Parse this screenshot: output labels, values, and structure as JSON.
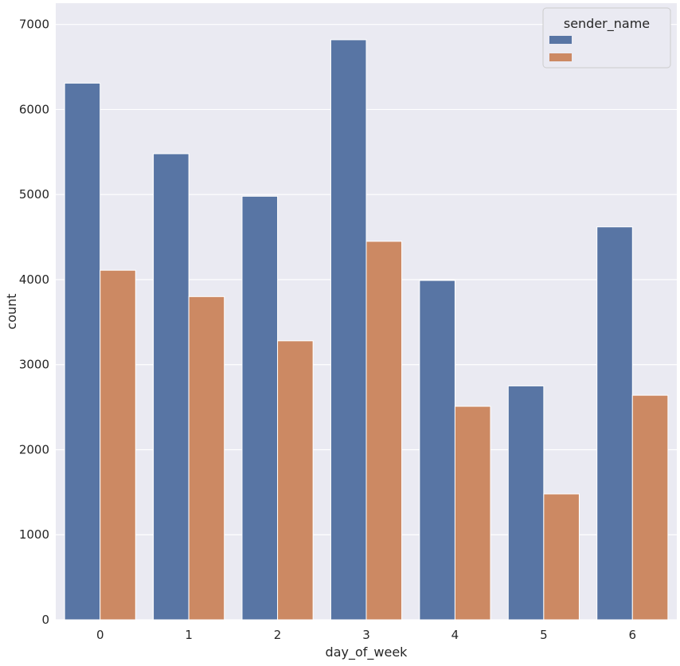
{
  "chart_data": {
    "type": "bar",
    "xlabel": "day_of_week",
    "ylabel": "count",
    "categories": [
      "0",
      "1",
      "2",
      "3",
      "4",
      "5",
      "6"
    ],
    "ylim": [
      0,
      7250
    ],
    "yticks": [
      0,
      1000,
      2000,
      3000,
      4000,
      5000,
      6000,
      7000
    ],
    "ytick_labels": [
      "0",
      "1000",
      "2000",
      "3000",
      "4000",
      "5000",
      "6000",
      "7000"
    ],
    "grid": true,
    "series": [
      {
        "values": [
          6310,
          5480,
          4980,
          6820,
          3990,
          2750,
          4620
        ],
        "color": "#5875a4"
      },
      {
        "values": [
          4110,
          3800,
          3280,
          4450,
          2510,
          1480,
          2640
        ],
        "color": "#cc8963"
      }
    ],
    "legend": {
      "title": "sender_name",
      "placement": "top-right"
    },
    "colors": {
      "background": "#eaeaf2",
      "grid": "#ffffff"
    }
  }
}
